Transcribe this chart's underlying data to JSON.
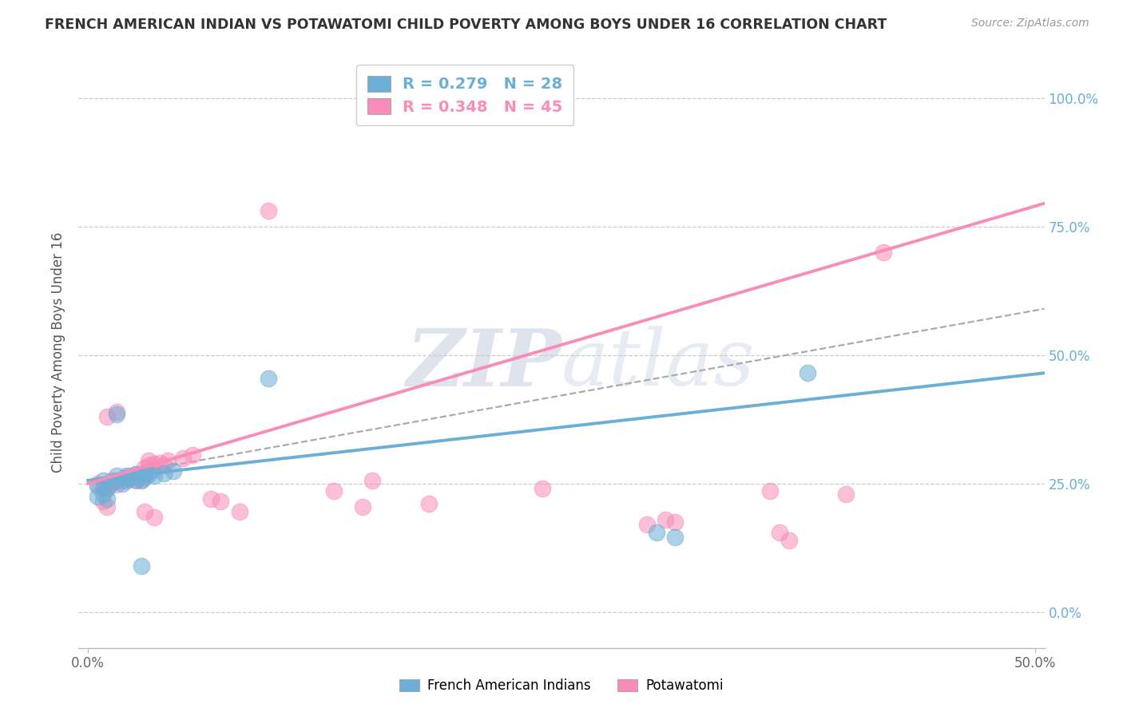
{
  "title": "FRENCH AMERICAN INDIAN VS POTAWATOMI CHILD POVERTY AMONG BOYS UNDER 16 CORRELATION CHART",
  "source": "Source: ZipAtlas.com",
  "ylabel": "Child Poverty Among Boys Under 16",
  "xlim": [
    -0.005,
    0.505
  ],
  "ylim": [
    -0.07,
    1.08
  ],
  "ytick_values": [
    0.0,
    0.25,
    0.5,
    0.75,
    1.0
  ],
  "ytick_labels": [
    "0.0%",
    "25.0%",
    "50.0%",
    "75.0%",
    "100.0%"
  ],
  "xtick_values": [
    0.0,
    0.5
  ],
  "xtick_labels": [
    "0.0%",
    "50.0%"
  ],
  "legend_labels": [
    "French American Indians",
    "Potawatomi"
  ],
  "R_blue": 0.279,
  "N_blue": 28,
  "R_pink": 0.348,
  "N_pink": 45,
  "blue_color": "#6baed6",
  "pink_color": "#f98cb8",
  "watermark_color": "#d0d8e8",
  "blue_scatter": [
    [
      0.005,
      0.245
    ],
    [
      0.008,
      0.255
    ],
    [
      0.01,
      0.24
    ],
    [
      0.012,
      0.25
    ],
    [
      0.015,
      0.255
    ],
    [
      0.015,
      0.265
    ],
    [
      0.018,
      0.25
    ],
    [
      0.02,
      0.255
    ],
    [
      0.02,
      0.265
    ],
    [
      0.022,
      0.26
    ],
    [
      0.025,
      0.258
    ],
    [
      0.025,
      0.268
    ],
    [
      0.028,
      0.255
    ],
    [
      0.03,
      0.262
    ],
    [
      0.03,
      0.27
    ],
    [
      0.032,
      0.268
    ],
    [
      0.035,
      0.265
    ],
    [
      0.04,
      0.27
    ],
    [
      0.045,
      0.275
    ],
    [
      0.005,
      0.225
    ],
    [
      0.008,
      0.23
    ],
    [
      0.01,
      0.22
    ],
    [
      0.015,
      0.385
    ],
    [
      0.095,
      0.455
    ],
    [
      0.3,
      0.155
    ],
    [
      0.31,
      0.145
    ],
    [
      0.38,
      0.465
    ],
    [
      0.028,
      0.09
    ]
  ],
  "pink_scatter": [
    [
      0.005,
      0.25
    ],
    [
      0.008,
      0.24
    ],
    [
      0.01,
      0.245
    ],
    [
      0.012,
      0.255
    ],
    [
      0.015,
      0.248
    ],
    [
      0.018,
      0.255
    ],
    [
      0.02,
      0.26
    ],
    [
      0.022,
      0.265
    ],
    [
      0.025,
      0.255
    ],
    [
      0.025,
      0.268
    ],
    [
      0.028,
      0.258
    ],
    [
      0.03,
      0.27
    ],
    [
      0.03,
      0.28
    ],
    [
      0.032,
      0.285
    ],
    [
      0.032,
      0.295
    ],
    [
      0.035,
      0.278
    ],
    [
      0.035,
      0.288
    ],
    [
      0.038,
      0.29
    ],
    [
      0.04,
      0.285
    ],
    [
      0.042,
      0.295
    ],
    [
      0.05,
      0.3
    ],
    [
      0.055,
      0.305
    ],
    [
      0.01,
      0.38
    ],
    [
      0.015,
      0.39
    ],
    [
      0.095,
      0.78
    ],
    [
      0.13,
      0.235
    ],
    [
      0.145,
      0.205
    ],
    [
      0.15,
      0.255
    ],
    [
      0.18,
      0.21
    ],
    [
      0.24,
      0.24
    ],
    [
      0.295,
      0.17
    ],
    [
      0.31,
      0.175
    ],
    [
      0.305,
      0.18
    ],
    [
      0.36,
      0.235
    ],
    [
      0.365,
      0.155
    ],
    [
      0.37,
      0.14
    ],
    [
      0.4,
      0.23
    ],
    [
      0.42,
      0.7
    ],
    [
      0.008,
      0.215
    ],
    [
      0.01,
      0.205
    ],
    [
      0.03,
      0.195
    ],
    [
      0.035,
      0.185
    ],
    [
      0.065,
      0.22
    ],
    [
      0.07,
      0.215
    ],
    [
      0.08,
      0.195
    ]
  ],
  "blue_line": [
    0.0,
    0.256,
    0.505,
    0.465
  ],
  "pink_line": [
    0.0,
    0.25,
    0.505,
    0.795
  ],
  "gray_line": [
    0.0,
    0.256,
    0.505,
    0.59
  ]
}
